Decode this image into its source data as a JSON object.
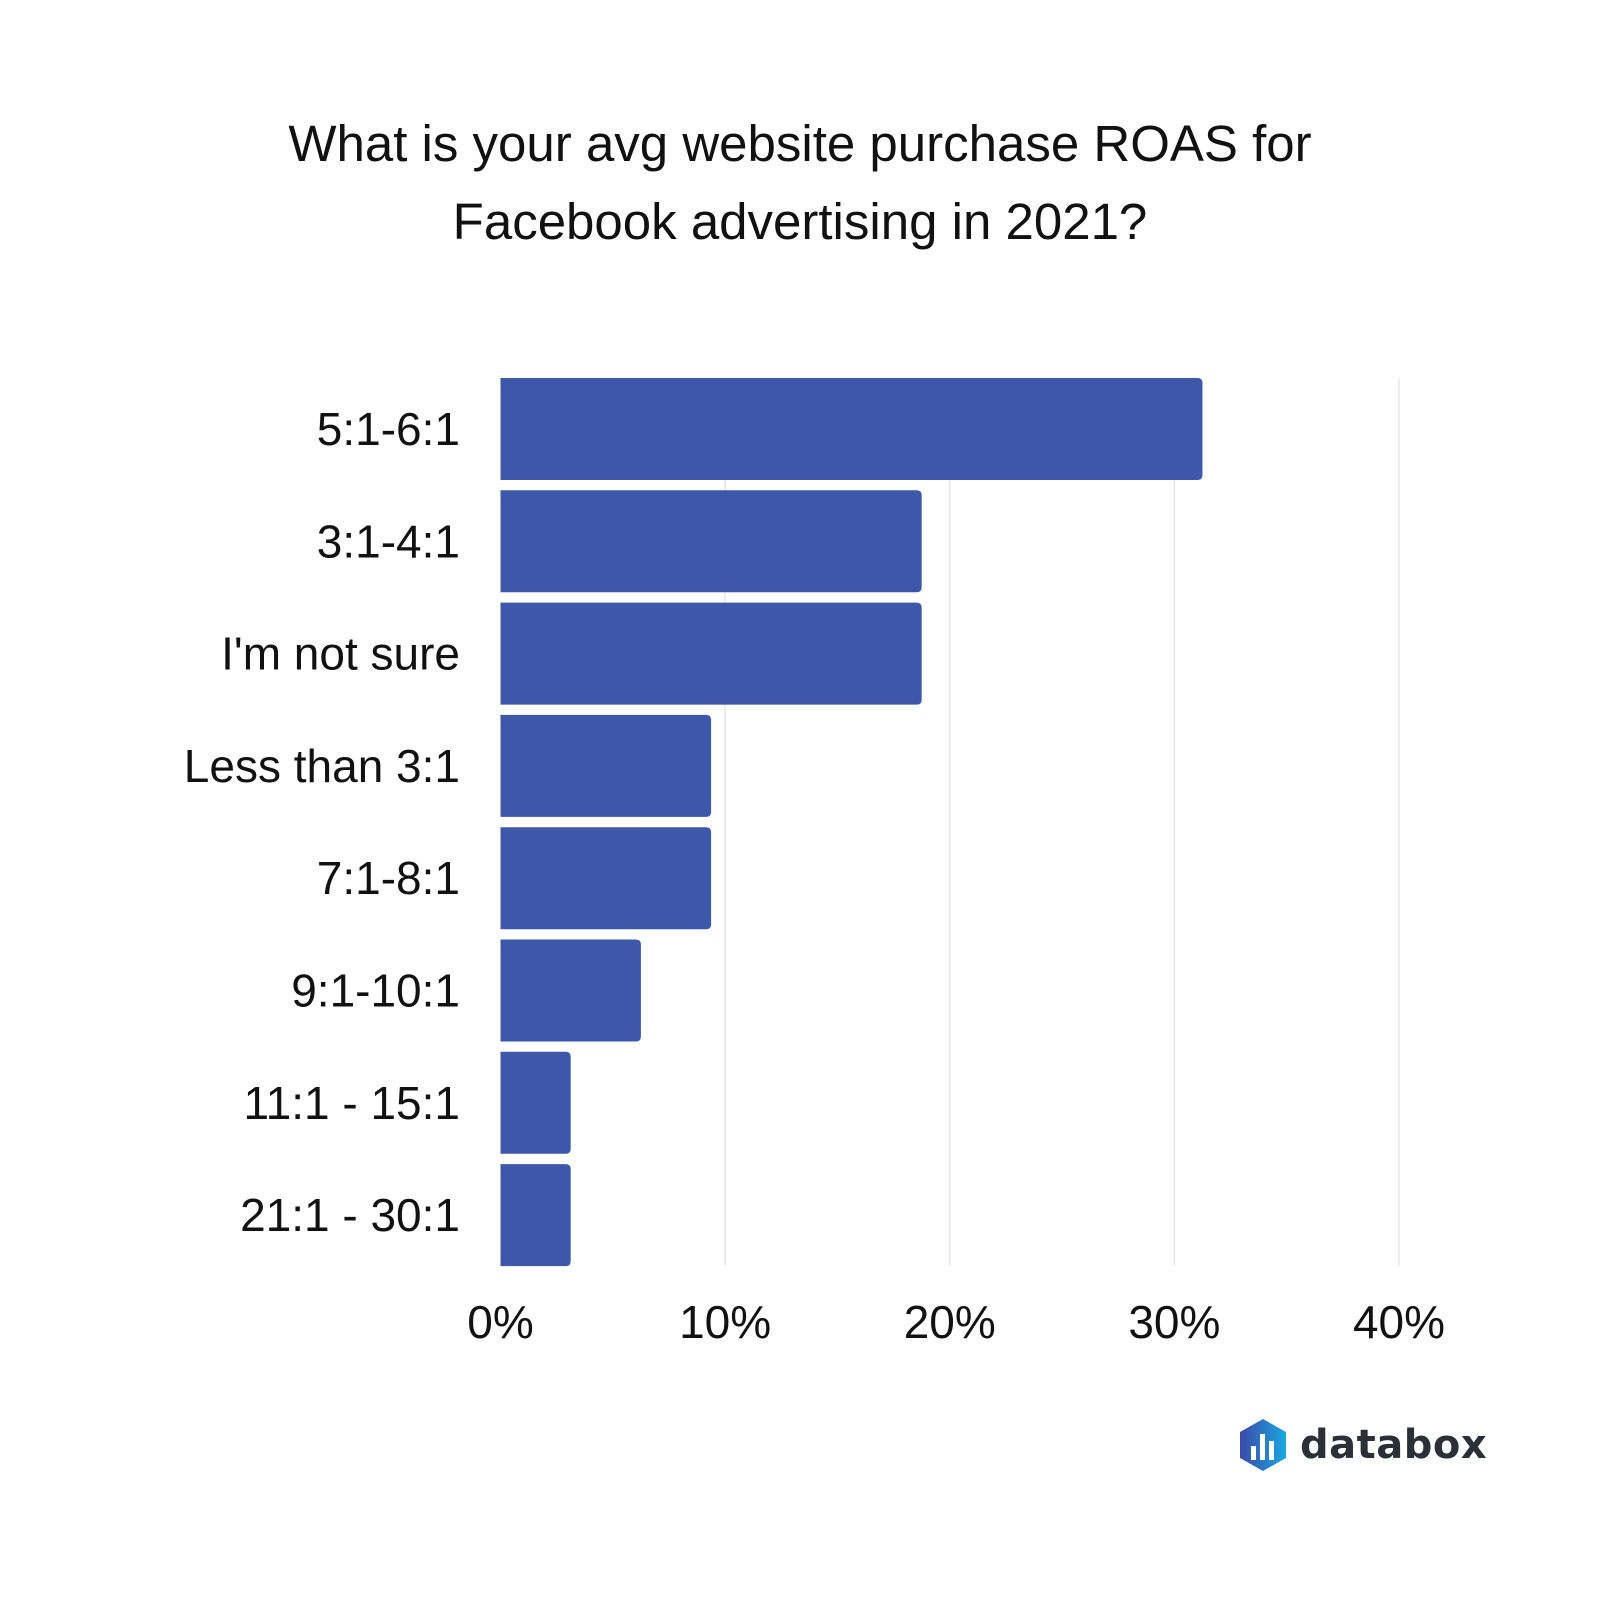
{
  "chart_data": {
    "type": "bar",
    "orientation": "horizontal",
    "title": "What is your avg website purchase ROAS for Facebook advertising in 2021?",
    "categories": [
      "5:1-6:1",
      "3:1-4:1",
      "I'm not sure",
      "Less than 3:1",
      "7:1-8:1",
      "9:1-10:1",
      "11:1 - 15:1",
      "21:1 - 30:1"
    ],
    "values": [
      31.25,
      18.75,
      18.75,
      9.375,
      9.375,
      6.25,
      3.125,
      3.125
    ],
    "xlim": [
      0,
      40
    ],
    "xticks": [
      0,
      10,
      20,
      30,
      40
    ],
    "xtick_labels": [
      "0%",
      "10%",
      "20%",
      "30%",
      "40%"
    ],
    "xlabel": "",
    "ylabel": "",
    "grid": true,
    "bar_color": "#3d58a9",
    "grid_color": "#e6e6e6"
  },
  "brand": {
    "name": "databox",
    "colors": [
      "#3b4aa8",
      "#1aa6e0"
    ]
  }
}
